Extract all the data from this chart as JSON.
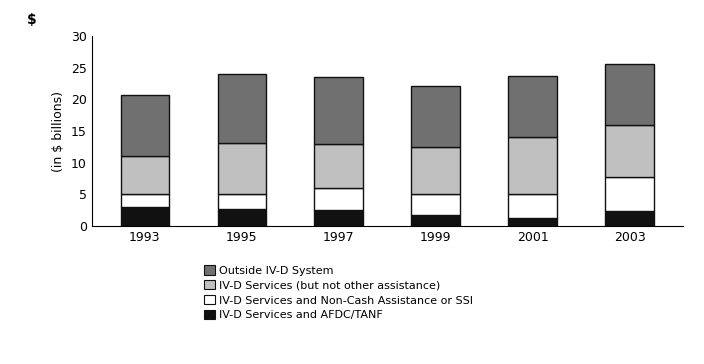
{
  "years": [
    1993,
    1995,
    1997,
    1999,
    2001,
    2003
  ],
  "iv_d_afdc_tanf": [
    3.0,
    2.6,
    2.5,
    1.7,
    1.2,
    2.3
  ],
  "iv_d_non_cash_ssi": [
    2.0,
    2.4,
    3.5,
    3.3,
    3.8,
    5.4
  ],
  "iv_d_services_only": [
    6.0,
    8.1,
    7.0,
    7.5,
    9.0,
    8.3
  ],
  "outside_iv_d": [
    9.7,
    10.9,
    10.5,
    9.7,
    9.8,
    9.6
  ],
  "colors": {
    "iv_d_afdc_tanf": "#111111",
    "iv_d_non_cash_ssi": "#ffffff",
    "iv_d_services_only": "#c0c0c0",
    "outside_iv_d": "#707070"
  },
  "legend_labels": [
    "Outside IV-D System",
    "IV-D Services (but not other assistance)",
    "IV-D Services and Non-Cash Assistance or SSI",
    "IV-D Services and AFDC/TANF"
  ],
  "ylabel": "(in $ billions)",
  "dollar_label": "$",
  "ylim": [
    0,
    30
  ],
  "yticks": [
    0,
    5,
    10,
    15,
    20,
    25,
    30
  ],
  "bar_width": 0.5,
  "edgecolor": "#111111",
  "background_color": "#ffffff"
}
